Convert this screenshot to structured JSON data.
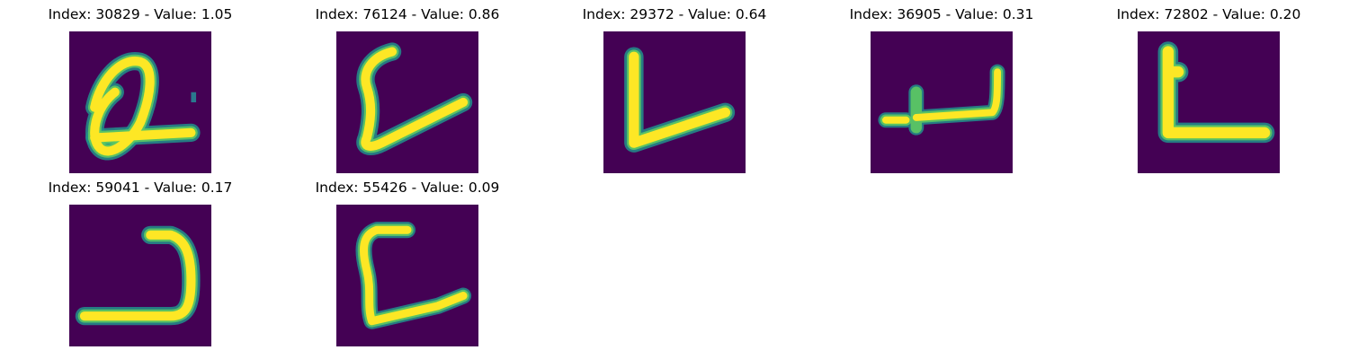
{
  "panels": [
    {
      "index": "30829",
      "value": "1.05",
      "title": "Index: 30829 - Value: 1.05",
      "glyph": "digit-a-loop"
    },
    {
      "index": "76124",
      "value": "0.86",
      "title": "Index: 76124 - Value: 0.86",
      "glyph": "curved-l"
    },
    {
      "index": "29372",
      "value": "0.64",
      "title": "Index: 29372 - Value: 0.64",
      "glyph": "l-shape"
    },
    {
      "index": "36905",
      "value": "0.31",
      "title": "Index: 36905 - Value: 0.31",
      "glyph": "flat-hook"
    },
    {
      "index": "72802",
      "value": "0.20",
      "title": "Index: 72802 - Value: 0.20",
      "glyph": "block-l"
    },
    {
      "index": "59041",
      "value": "0.17",
      "title": "Index: 59041 - Value: 0.17",
      "glyph": "reverse-hook"
    },
    {
      "index": "55426",
      "value": "0.09",
      "title": "Index: 55426 - Value: 0.09",
      "glyph": "open-c"
    }
  ],
  "colors": {
    "background": "#440154",
    "stroke_core": "#fde725",
    "stroke_mid": "#5ec962",
    "stroke_halo": "#21918c"
  }
}
